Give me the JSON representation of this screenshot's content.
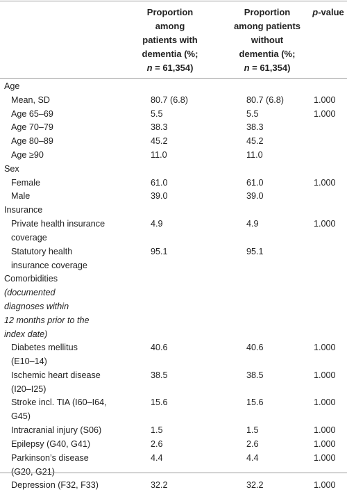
{
  "header": {
    "col1": [
      "Proportion",
      "among",
      "patients with",
      "dementia (%;",
      "n = 61,354)"
    ],
    "col2": [
      "Proportion",
      "among patients",
      "without",
      "dementia (%;",
      "n = 61,354)"
    ],
    "col3": "p-value"
  },
  "rows": [
    {
      "label": [
        "Age"
      ],
      "indent": false
    },
    {
      "label": [
        "Mean, SD"
      ],
      "indent": true,
      "v1": "80.7 (6.8)",
      "v2": "80.7 (6.8)",
      "p": "1.000"
    },
    {
      "label": [
        "Age 65–69"
      ],
      "indent": true,
      "v1": "5.5",
      "v2": "5.5",
      "p": "1.000"
    },
    {
      "label": [
        "Age 70–79"
      ],
      "indent": true,
      "v1": "38.3",
      "v2": "38.3",
      "p": ""
    },
    {
      "label": [
        "Age 80–89"
      ],
      "indent": true,
      "v1": "45.2",
      "v2": "45.2",
      "p": ""
    },
    {
      "label": [
        "Age ≥90"
      ],
      "indent": true,
      "v1": "11.0",
      "v2": "11.0",
      "p": ""
    },
    {
      "label": [
        "Sex"
      ],
      "indent": false
    },
    {
      "label": [
        "Female"
      ],
      "indent": true,
      "v1": "61.0",
      "v2": "61.0",
      "p": "1.000"
    },
    {
      "label": [
        "Male"
      ],
      "indent": true,
      "v1": "39.0",
      "v2": "39.0",
      "p": ""
    },
    {
      "label": [
        "Insurance"
      ],
      "indent": false
    },
    {
      "label": [
        "Private health insurance",
        "coverage"
      ],
      "indent": true,
      "v1": "4.9",
      "v2": "4.9",
      "p": "1.000"
    },
    {
      "label": [
        "Statutory health",
        "insurance coverage"
      ],
      "indent": true,
      "v1": "95.1",
      "v2": "95.1",
      "p": ""
    },
    {
      "label": [
        "Comorbidities"
      ],
      "label_it": [
        "(documented",
        "diagnoses within",
        "12 months prior to the",
        "index date)"
      ],
      "indent": false
    },
    {
      "label": [
        "Diabetes mellitus",
        "(E10–14)"
      ],
      "indent": true,
      "v1": "40.6",
      "v2": "40.6",
      "p": "1.000"
    },
    {
      "label": [
        "Ischemic heart disease",
        "(I20–I25)"
      ],
      "indent": true,
      "v1": "38.5",
      "v2": "38.5",
      "p": "1.000"
    },
    {
      "label": [
        "Stroke incl. TIA (I60–I64,",
        "G45)"
      ],
      "indent": true,
      "v1": "15.6",
      "v2": "15.6",
      "p": "1.000"
    },
    {
      "label": [
        "Intracranial injury (S06)"
      ],
      "indent": true,
      "v1": "1.5",
      "v2": "1.5",
      "p": "1.000"
    },
    {
      "label": [
        "Epilepsy (G40, G41)"
      ],
      "indent": true,
      "v1": "2.6",
      "v2": "2.6",
      "p": "1.000"
    },
    {
      "label": [
        "Parkinson’s disease",
        "(G20, G21)"
      ],
      "indent": true,
      "v1": "4.4",
      "v2": "4.4",
      "p": "1.000"
    },
    {
      "label": [
        "Depression (F32, F33)"
      ],
      "indent": true,
      "v1": "32.2",
      "v2": "32.2",
      "p": "1.000"
    }
  ]
}
